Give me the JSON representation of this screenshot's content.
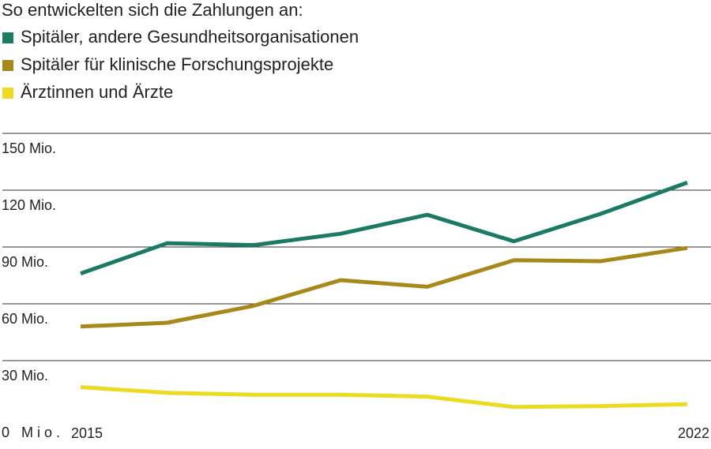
{
  "chart_data": {
    "type": "line",
    "title": "So entwickelten sich die Zahlungen an:",
    "x": [
      2015,
      2016,
      2017,
      2018,
      2019,
      2020,
      2021,
      2022
    ],
    "xlim": [
      2015,
      2022
    ],
    "xticks": [
      2015,
      2022
    ],
    "ylim": [
      0,
      150
    ],
    "yticks": [
      {
        "value": 0,
        "label": "0 Mio."
      },
      {
        "value": 30,
        "label": "30 Mio."
      },
      {
        "value": 60,
        "label": "60 Mio."
      },
      {
        "value": 90,
        "label": "90 Mio."
      },
      {
        "value": 120,
        "label": "120 Mio."
      },
      {
        "value": 150,
        "label": "150 Mio."
      }
    ],
    "grid": true,
    "series": [
      {
        "name": "Spitäler, andere Gesundheitsorganisationen",
        "color": "#1b7a64",
        "values": [
          76,
          92,
          91,
          97,
          107,
          93,
          107.5,
          124
        ]
      },
      {
        "name": "Spitäler für klinische Forschungsprojekte",
        "color": "#a8881a",
        "values": [
          48,
          50,
          59,
          72.5,
          69,
          83,
          82.5,
          89.5
        ]
      },
      {
        "name": "Ärztinnen und Ärzte",
        "color": "#ecdb22",
        "values": [
          16,
          13,
          12,
          12,
          11,
          5.5,
          6,
          7
        ]
      }
    ]
  }
}
